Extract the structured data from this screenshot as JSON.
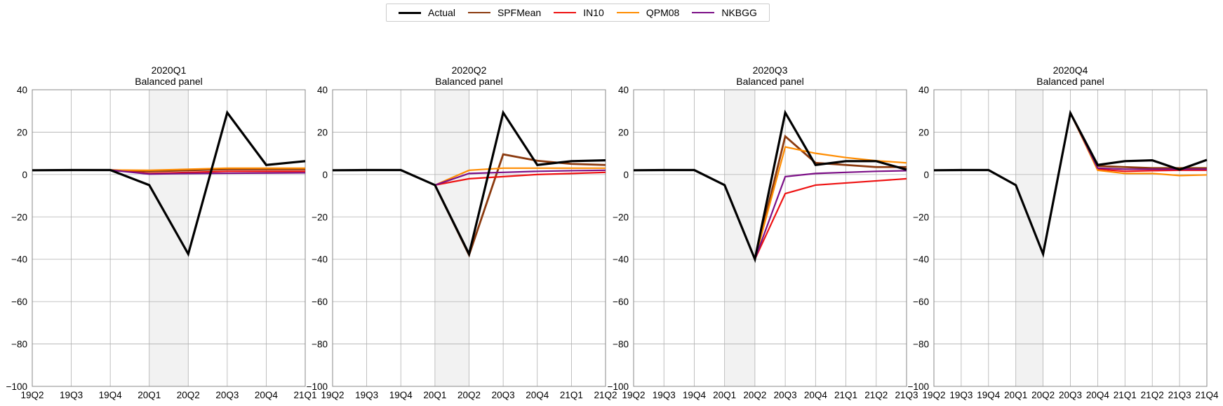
{
  "legend": [
    {
      "name": "Actual",
      "color": "#000000"
    },
    {
      "name": "SPFMean",
      "color": "#8B3A0F"
    },
    {
      "name": "IN10",
      "color": "#EE1111"
    },
    {
      "name": "QPM08",
      "color": "#FF8C00"
    },
    {
      "name": "NKBGG",
      "color": "#7B0F86"
    }
  ],
  "chart_data": [
    {
      "type": "line",
      "title": "2020Q1",
      "subtitle": "Balanced panel",
      "categories": [
        "19Q2",
        "19Q3",
        "19Q4",
        "20Q1",
        "20Q2",
        "20Q3",
        "20Q4",
        "21Q1"
      ],
      "ylim": [
        -100,
        40
      ],
      "yticks": [
        40,
        20,
        0,
        -20,
        -40,
        -60,
        -80,
        -100
      ],
      "grid": true,
      "shaded_region": [
        "20Q1",
        "20Q2"
      ],
      "series": [
        {
          "name": "Actual",
          "color": "#000000",
          "x": [
            "19Q2",
            "19Q3",
            "19Q4",
            "20Q1",
            "20Q2",
            "20Q3",
            "20Q4",
            "21Q1"
          ],
          "values": [
            2.0,
            2.1,
            2.1,
            -5.0,
            -37.5,
            29.2,
            4.5,
            6.3
          ]
        },
        {
          "name": "SPFMean",
          "color": "#8B3A0F",
          "x": [
            "19Q4",
            "20Q1",
            "20Q2",
            "20Q3",
            "20Q4",
            "21Q1"
          ],
          "values": [
            2.1,
            1.5,
            2.0,
            2.5,
            2.5,
            2.5
          ]
        },
        {
          "name": "IN10",
          "color": "#EE1111",
          "x": [
            "19Q4",
            "20Q1",
            "20Q2",
            "20Q3",
            "20Q4",
            "21Q1"
          ],
          "values": [
            2.1,
            0.5,
            1.0,
            1.5,
            1.5,
            1.5
          ]
        },
        {
          "name": "QPM08",
          "color": "#FF8C00",
          "x": [
            "19Q4",
            "20Q1",
            "20Q2",
            "20Q3",
            "20Q4",
            "21Q1"
          ],
          "values": [
            2.1,
            2.0,
            2.5,
            3.0,
            3.0,
            3.0
          ]
        },
        {
          "name": "NKBGG",
          "color": "#7B0F86",
          "x": [
            "19Q4",
            "20Q1",
            "20Q2",
            "20Q3",
            "20Q4",
            "21Q1"
          ],
          "values": [
            2.1,
            0.2,
            0.5,
            0.6,
            0.7,
            0.8
          ]
        }
      ]
    },
    {
      "type": "line",
      "title": "2020Q2",
      "subtitle": "Balanced panel",
      "categories": [
        "19Q2",
        "19Q3",
        "19Q4",
        "20Q1",
        "20Q2",
        "20Q3",
        "20Q4",
        "21Q1",
        "21Q2"
      ],
      "ylim": [
        -100,
        40
      ],
      "yticks": [
        40,
        20,
        0,
        -20,
        -40,
        -60,
        -80,
        -100
      ],
      "grid": true,
      "shaded_region": [
        "20Q1",
        "20Q2"
      ],
      "series": [
        {
          "name": "Actual",
          "color": "#000000",
          "x": [
            "19Q2",
            "19Q3",
            "19Q4",
            "20Q1",
            "20Q2",
            "20Q3",
            "20Q4",
            "21Q1",
            "21Q2"
          ],
          "values": [
            2.0,
            2.1,
            2.1,
            -5.0,
            -37.5,
            29.2,
            4.5,
            6.3,
            6.7
          ]
        },
        {
          "name": "SPFMean",
          "color": "#8B3A0F",
          "x": [
            "20Q1",
            "20Q2",
            "20Q3",
            "20Q4",
            "21Q1",
            "21Q2"
          ],
          "values": [
            -5.0,
            -38.0,
            9.5,
            6.5,
            5.0,
            4.5
          ]
        },
        {
          "name": "IN10",
          "color": "#EE1111",
          "x": [
            "20Q1",
            "20Q2",
            "20Q3",
            "20Q4",
            "21Q1",
            "21Q2"
          ],
          "values": [
            -5.0,
            -2.0,
            -1.0,
            0.0,
            0.5,
            1.0
          ]
        },
        {
          "name": "QPM08",
          "color": "#FF8C00",
          "x": [
            "20Q1",
            "20Q2",
            "20Q3",
            "20Q4",
            "21Q1",
            "21Q2"
          ],
          "values": [
            -5.0,
            2.0,
            3.0,
            3.0,
            3.0,
            3.0
          ]
        },
        {
          "name": "NKBGG",
          "color": "#7B0F86",
          "x": [
            "20Q1",
            "20Q2",
            "20Q3",
            "20Q4",
            "21Q1",
            "21Q2"
          ],
          "values": [
            -5.0,
            0.5,
            1.0,
            1.5,
            1.8,
            2.0
          ]
        }
      ]
    },
    {
      "type": "line",
      "title": "2020Q3",
      "subtitle": "Balanced panel",
      "categories": [
        "19Q2",
        "19Q3",
        "19Q4",
        "20Q1",
        "20Q2",
        "20Q3",
        "20Q4",
        "21Q1",
        "21Q2",
        "21Q3"
      ],
      "ylim": [
        -100,
        40
      ],
      "yticks": [
        40,
        20,
        0,
        -20,
        -40,
        -60,
        -80,
        -100
      ],
      "grid": true,
      "shaded_region": [
        "20Q1",
        "20Q2"
      ],
      "series": [
        {
          "name": "Actual",
          "color": "#000000",
          "x": [
            "19Q2",
            "19Q3",
            "19Q4",
            "20Q1",
            "20Q2",
            "20Q3",
            "20Q4",
            "21Q1",
            "21Q2",
            "21Q3"
          ],
          "values": [
            2.0,
            2.1,
            2.1,
            -5.0,
            -40.0,
            29.2,
            4.5,
            6.3,
            6.3,
            2.3
          ]
        },
        {
          "name": "SPFMean",
          "color": "#8B3A0F",
          "x": [
            "20Q2",
            "20Q3",
            "20Q4",
            "21Q1",
            "21Q2",
            "21Q3"
          ],
          "values": [
            -40.0,
            18.0,
            5.5,
            4.5,
            3.5,
            3.5
          ]
        },
        {
          "name": "IN10",
          "color": "#EE1111",
          "x": [
            "20Q2",
            "20Q3",
            "20Q4",
            "21Q1",
            "21Q2",
            "21Q3"
          ],
          "values": [
            -40.0,
            -9.0,
            -5.0,
            -4.0,
            -3.0,
            -2.0
          ]
        },
        {
          "name": "QPM08",
          "color": "#FF8C00",
          "x": [
            "20Q2",
            "20Q3",
            "20Q4",
            "21Q1",
            "21Q2",
            "21Q3"
          ],
          "values": [
            -40.0,
            13.0,
            10.0,
            8.0,
            6.5,
            5.5
          ]
        },
        {
          "name": "NKBGG",
          "color": "#7B0F86",
          "x": [
            "20Q2",
            "20Q3",
            "20Q4",
            "21Q1",
            "21Q2",
            "21Q3"
          ],
          "values": [
            -40.0,
            -1.0,
            0.5,
            1.0,
            1.5,
            1.8
          ]
        }
      ]
    },
    {
      "type": "line",
      "title": "2020Q4",
      "subtitle": "Balanced panel",
      "categories": [
        "19Q2",
        "19Q3",
        "19Q4",
        "20Q1",
        "20Q2",
        "20Q3",
        "20Q4",
        "21Q1",
        "21Q2",
        "21Q3",
        "21Q4"
      ],
      "ylim": [
        -100,
        40
      ],
      "yticks": [
        40,
        20,
        0,
        -20,
        -40,
        -60,
        -80,
        -100
      ],
      "grid": true,
      "shaded_region": [
        "20Q1",
        "20Q2"
      ],
      "series": [
        {
          "name": "Actual",
          "color": "#000000",
          "x": [
            "19Q2",
            "19Q3",
            "19Q4",
            "20Q1",
            "20Q2",
            "20Q3",
            "20Q4",
            "21Q1",
            "21Q2",
            "21Q3",
            "21Q4"
          ],
          "values": [
            2.0,
            2.1,
            2.1,
            -5.0,
            -37.5,
            29.0,
            4.5,
            6.3,
            6.7,
            2.3,
            6.9
          ]
        },
        {
          "name": "SPFMean",
          "color": "#8B3A0F",
          "x": [
            "20Q3",
            "20Q4",
            "21Q1",
            "21Q2",
            "21Q3",
            "21Q4"
          ],
          "values": [
            29.0,
            4.0,
            3.5,
            3.0,
            3.0,
            3.0
          ]
        },
        {
          "name": "IN10",
          "color": "#EE1111",
          "x": [
            "20Q3",
            "20Q4",
            "21Q1",
            "21Q2",
            "21Q3",
            "21Q4"
          ],
          "values": [
            29.0,
            2.5,
            1.5,
            1.8,
            2.0,
            2.0
          ]
        },
        {
          "name": "QPM08",
          "color": "#FF8C00",
          "x": [
            "20Q3",
            "20Q4",
            "21Q1",
            "21Q2",
            "21Q3",
            "21Q4"
          ],
          "values": [
            29.0,
            2.0,
            0.5,
            0.5,
            -0.5,
            -0.2
          ]
        },
        {
          "name": "NKBGG",
          "color": "#7B0F86",
          "x": [
            "20Q3",
            "20Q4",
            "21Q1",
            "21Q2",
            "21Q3",
            "21Q4"
          ],
          "values": [
            29.0,
            3.0,
            2.5,
            2.5,
            2.5,
            2.5
          ]
        }
      ]
    }
  ]
}
